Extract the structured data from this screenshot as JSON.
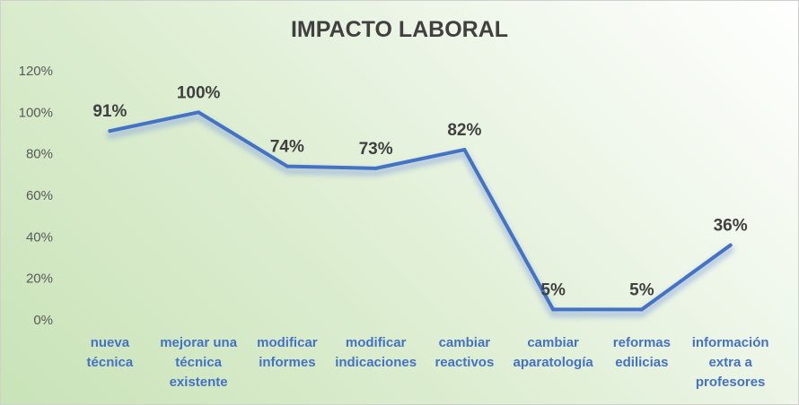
{
  "chart_data": {
    "type": "line",
    "title": "IMPACTO LABORAL",
    "categories": [
      [
        "nueva",
        "técnica"
      ],
      [
        "mejorar una",
        "técnica",
        "existente"
      ],
      [
        "modificar",
        "informes"
      ],
      [
        "modificar",
        "indicaciones"
      ],
      [
        "cambiar",
        "reactivos"
      ],
      [
        "cambiar",
        "aparatología"
      ],
      [
        "reformas",
        "edilicias"
      ],
      [
        "información",
        "extra a",
        "profesores"
      ]
    ],
    "series": [
      {
        "values": [
          91,
          100,
          74,
          73,
          82,
          5,
          5,
          36
        ]
      }
    ],
    "data_labels": [
      "91%",
      "100%",
      "74%",
      "73%",
      "82%",
      "5%",
      "5%",
      "36%"
    ],
    "y_ticks": [
      0,
      20,
      40,
      60,
      80,
      100,
      120
    ],
    "y_tick_labels": [
      "0%",
      "20%",
      "40%",
      "60%",
      "80%",
      "100%",
      "120%"
    ],
    "ylim": [
      0,
      120
    ],
    "grid": false,
    "legend": "none",
    "line_color": "#4472c4"
  }
}
